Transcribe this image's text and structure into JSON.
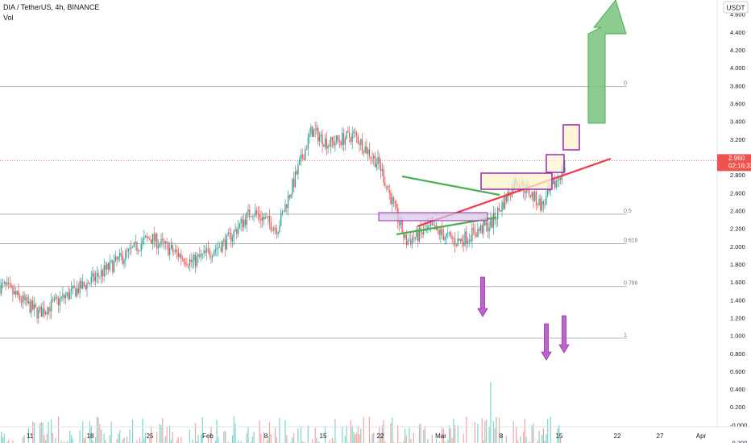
{
  "header": {
    "symbol": "DIA / TetherUS, 4h, BINANCE",
    "volume_label": "Vol",
    "currency": "USDT"
  },
  "price_badge": {
    "value": "2.960",
    "countdown": "02:16:33",
    "color": "#ef5350"
  },
  "chart_data": {
    "type": "candlestick",
    "title": "DIA / TetherUS, 4h, BINANCE",
    "price_axis": {
      "range": [
        0.0,
        4.6
      ],
      "tick_labels": [
        "4.600",
        "4.400",
        "4.200",
        "4.000",
        "3.800",
        "3.600",
        "3.400",
        "3.200",
        "3.000",
        "2.800",
        "2.600",
        "2.400",
        "2.200",
        "2.000",
        "1.800",
        "1.600",
        "1.400",
        "1.200",
        "1.000",
        "0.800",
        "0.600",
        "0.400",
        "0.200",
        "-0.000",
        "-0.200"
      ]
    },
    "x_axis": {
      "tick_labels": [
        "11",
        "18",
        "25",
        "Feb",
        "8",
        "15",
        "22",
        "Mar",
        "8",
        "15",
        "22",
        "27",
        "Apr"
      ]
    },
    "fibonacci_levels": [
      {
        "label": "0",
        "price": 3.79
      },
      {
        "label": "0.5",
        "price": 2.36
      },
      {
        "label": "0.618",
        "price": 2.03
      },
      {
        "label": "0.786",
        "price": 1.55
      },
      {
        "label": "1",
        "price": 0.97
      }
    ],
    "price_series": [
      {
        "date": "Jan 8",
        "close": 1.55
      },
      {
        "date": "Jan 12",
        "close": 1.25
      },
      {
        "date": "Jan 18",
        "close": 1.6
      },
      {
        "date": "Jan 25",
        "close": 2.1
      },
      {
        "date": "Jan 30",
        "close": 1.82
      },
      {
        "date": "Feb 3",
        "close": 2.05
      },
      {
        "date": "Feb 6",
        "close": 2.4
      },
      {
        "date": "Feb 9",
        "close": 2.2
      },
      {
        "date": "Feb 13",
        "close": 3.3
      },
      {
        "date": "Feb 15",
        "close": 3.15
      },
      {
        "date": "Feb 18",
        "close": 3.25
      },
      {
        "date": "Feb 21",
        "close": 2.9
      },
      {
        "date": "Feb 24",
        "close": 2.05
      },
      {
        "date": "Feb 27",
        "close": 2.2
      },
      {
        "date": "Mar 2",
        "close": 2.05
      },
      {
        "date": "Mar 6",
        "close": 2.25
      },
      {
        "date": "Mar 9",
        "close": 2.75
      },
      {
        "date": "Mar 12",
        "close": 2.45
      },
      {
        "date": "Mar 15",
        "close": 2.96
      }
    ],
    "volume_spikes": [
      {
        "date": "Mar 6",
        "value": 0.78
      },
      {
        "date": "Mar 14",
        "value": 0.3
      },
      {
        "date": "Mar 16",
        "value": 0.38
      }
    ],
    "current_price": 2.96,
    "colors": {
      "up": "#26a69a",
      "down": "#ef5350",
      "up_volume": "#7fd3c9",
      "down_volume": "#f5a3a1",
      "fib_line": "#b2b5be",
      "triangle": "#4caf50",
      "trendline": "#f23645",
      "zone_border": "#9c27b0",
      "zone_fill": "#fff3cd",
      "arrow_up": "#81c784",
      "arrow_down": "#ba68c8"
    }
  }
}
